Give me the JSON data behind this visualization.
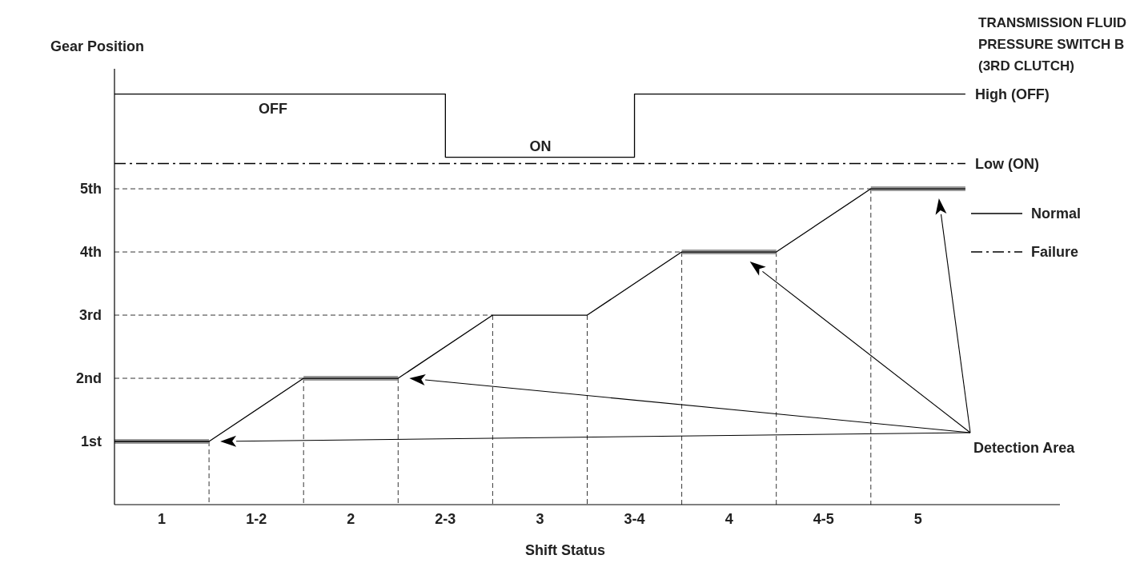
{
  "chart_data": {
    "type": "line",
    "ylabel": "Gear Position",
    "xlabel": "Shift Status",
    "title": "TRANSMISSION FLUID PRESSURE SWITCH B (3RD CLUTCH)",
    "xlim": [
      0.75,
      5.75
    ],
    "xticks": [
      1,
      {
        "value": 1.5,
        "label": "1-2"
      },
      2,
      {
        "value": 2.5,
        "label": "2-3"
      },
      3,
      {
        "value": 3.5,
        "label": "3-4"
      },
      4,
      {
        "value": 4.5,
        "label": "4-5"
      },
      5
    ],
    "ylim": [
      0,
      6.9
    ],
    "yticks": [
      {
        "value": 1,
        "label": "1st"
      },
      {
        "value": 2,
        "label": "2nd"
      },
      {
        "value": 3,
        "label": "3rd"
      },
      {
        "value": 4,
        "label": "4th"
      },
      {
        "value": 5,
        "label": "5th"
      }
    ],
    "legend": "right",
    "series": [
      {
        "color": "#000000",
        "x": [
          0.75,
          1.25,
          1.75,
          2.25,
          2.75,
          3.25,
          3.75,
          4.25,
          4.75,
          5.25
        ],
        "values": [
          1,
          1,
          2,
          2,
          3,
          3,
          4,
          4,
          5,
          5
        ]
      },
      {
        "color": "#999999",
        "x": [
          0.75,
          1.25,
          1.5,
          1.75,
          2.25,
          3,
          3.75,
          4.25,
          4.5,
          4.75,
          5.25
        ],
        "values": [
          1,
          1,
          null,
          2,
          2,
          null,
          4,
          4,
          null,
          5,
          5
        ]
      },
      {
        "type": "step",
        "name": "Normal",
        "color": "#000000",
        "line_style": "solid",
        "x": [
          0.75,
          2.5,
          3.5,
          5.25
        ],
        "values": [
          6.5,
          5.5,
          6.5,
          6.5
        ]
      },
      {
        "name": "Failure",
        "color": "#000000",
        "line_style": "dashed",
        "x": [
          0.75,
          5.25
        ],
        "values": [
          5.4,
          5.4
        ]
      },
      {
        "color": "#000000",
        "line_style": "dashed",
        "x": [
          1.25,
          1.25
        ],
        "values": [
          1,
          0
        ]
      },
      {
        "color": "#000000",
        "line_style": "dashed",
        "x": [
          1.75,
          1.75
        ],
        "values": [
          2,
          0
        ]
      },
      {
        "color": "#000000",
        "line_style": "dashed",
        "x": [
          2.25,
          2.25
        ],
        "values": [
          2,
          0
        ]
      },
      {
        "color": "#000000",
        "line_style": "dashed",
        "x": [
          2.75,
          2.75
        ],
        "values": [
          3,
          0
        ]
      },
      {
        "color": "#000000",
        "line_style": "dashed",
        "x": [
          3.25,
          3.25
        ],
        "values": [
          3,
          0
        ]
      },
      {
        "color": "#000000",
        "line_style": "dashed",
        "x": [
          3.75,
          3.75
        ],
        "values": [
          4,
          0
        ]
      },
      {
        "color": "#000000",
        "line_style": "dashed",
        "x": [
          4.25,
          4.25
        ],
        "values": [
          4,
          0
        ]
      },
      {
        "color": "#000000",
        "line_style": "dashed",
        "x": [
          4.75,
          4.75
        ],
        "values": [
          5,
          0
        ]
      },
      {
        "color": "#000000",
        "line_style": "dashed",
        "x": [
          0.75,
          1.75
        ],
        "values": [
          2,
          2
        ]
      },
      {
        "color": "#000000",
        "line_style": "dashed",
        "x": [
          0.75,
          2.75
        ],
        "values": [
          3,
          3
        ]
      },
      {
        "color": "#000000",
        "line_style": "dashed",
        "x": [
          0.75,
          3.75
        ],
        "values": [
          4,
          4
        ]
      },
      {
        "color": "#000000",
        "line_style": "dashed",
        "x": [
          0.75,
          4.75
        ],
        "values": [
          5,
          5
        ]
      }
    ],
    "annotations": [
      "OFF",
      "ON",
      "Detection Area",
      {
        "text": "High (OFF)",
        "x": 5.25,
        "y": 6.5
      },
      {
        "text": "Low (ON)",
        "x": 5.25,
        "y": 5.4
      }
    ]
  }
}
